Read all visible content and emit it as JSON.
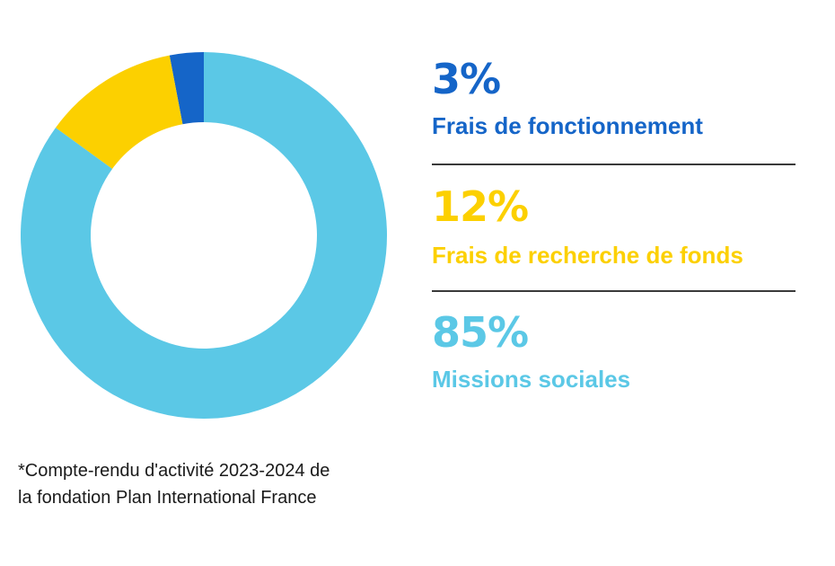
{
  "chart_data": {
    "type": "pie",
    "variant": "donut",
    "slices": [
      {
        "value": 3,
        "percent_label": "3%",
        "label": "Frais de fonctionnement",
        "color": "#1565c8"
      },
      {
        "value": 12,
        "percent_label": "12%",
        "label": "Frais de recherche de fonds",
        "color": "#fcd000"
      },
      {
        "value": 85,
        "percent_label": "85%",
        "label": "Missions sociales",
        "color": "#5bc8e6"
      }
    ],
    "legend_position": "right",
    "separator_color": "#3a3a3a"
  },
  "footnote": {
    "line1": "*Compte-rendu d'activité 2023-2024 de",
    "line2": "la fondation Plan International France"
  }
}
